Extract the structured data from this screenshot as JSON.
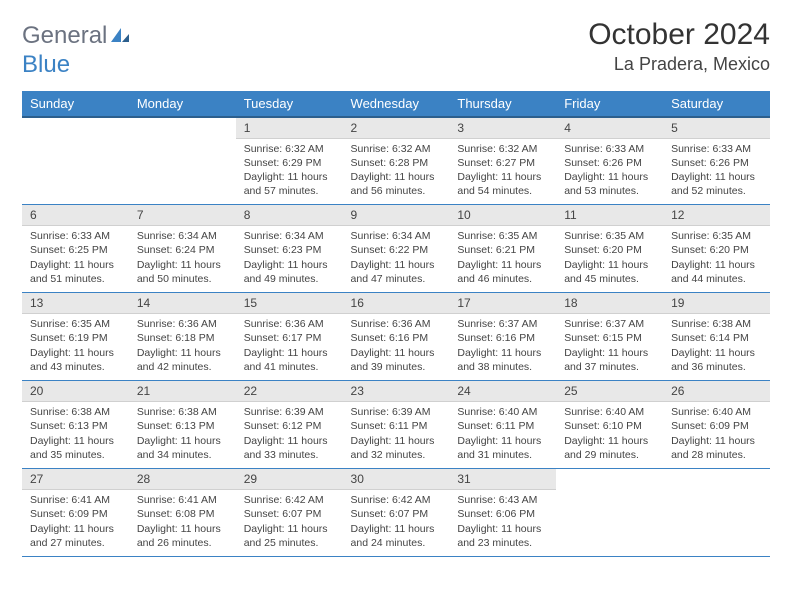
{
  "logo": {
    "general": "General",
    "blue": "Blue"
  },
  "header": {
    "month_title": "October 2024",
    "location": "La Pradera, Mexico"
  },
  "styling": {
    "header_bg": "#3b82c4",
    "header_text": "#ffffff",
    "daynum_bg": "#e8e8e8",
    "border_color": "#3b82c4",
    "page_bg": "#ffffff",
    "text_color": "#444444",
    "title_fontsize": 30,
    "location_fontsize": 18,
    "dayheader_fontsize": 13,
    "daynum_fontsize": 12,
    "detail_fontsize": 10.5
  },
  "day_headers": [
    "Sunday",
    "Monday",
    "Tuesday",
    "Wednesday",
    "Thursday",
    "Friday",
    "Saturday"
  ],
  "weeks": [
    [
      null,
      null,
      {
        "n": "1",
        "sr": "6:32 AM",
        "ss": "6:29 PM",
        "dl": "11 hours and 57 minutes."
      },
      {
        "n": "2",
        "sr": "6:32 AM",
        "ss": "6:28 PM",
        "dl": "11 hours and 56 minutes."
      },
      {
        "n": "3",
        "sr": "6:32 AM",
        "ss": "6:27 PM",
        "dl": "11 hours and 54 minutes."
      },
      {
        "n": "4",
        "sr": "6:33 AM",
        "ss": "6:26 PM",
        "dl": "11 hours and 53 minutes."
      },
      {
        "n": "5",
        "sr": "6:33 AM",
        "ss": "6:26 PM",
        "dl": "11 hours and 52 minutes."
      }
    ],
    [
      {
        "n": "6",
        "sr": "6:33 AM",
        "ss": "6:25 PM",
        "dl": "11 hours and 51 minutes."
      },
      {
        "n": "7",
        "sr": "6:34 AM",
        "ss": "6:24 PM",
        "dl": "11 hours and 50 minutes."
      },
      {
        "n": "8",
        "sr": "6:34 AM",
        "ss": "6:23 PM",
        "dl": "11 hours and 49 minutes."
      },
      {
        "n": "9",
        "sr": "6:34 AM",
        "ss": "6:22 PM",
        "dl": "11 hours and 47 minutes."
      },
      {
        "n": "10",
        "sr": "6:35 AM",
        "ss": "6:21 PM",
        "dl": "11 hours and 46 minutes."
      },
      {
        "n": "11",
        "sr": "6:35 AM",
        "ss": "6:20 PM",
        "dl": "11 hours and 45 minutes."
      },
      {
        "n": "12",
        "sr": "6:35 AM",
        "ss": "6:20 PM",
        "dl": "11 hours and 44 minutes."
      }
    ],
    [
      {
        "n": "13",
        "sr": "6:35 AM",
        "ss": "6:19 PM",
        "dl": "11 hours and 43 minutes."
      },
      {
        "n": "14",
        "sr": "6:36 AM",
        "ss": "6:18 PM",
        "dl": "11 hours and 42 minutes."
      },
      {
        "n": "15",
        "sr": "6:36 AM",
        "ss": "6:17 PM",
        "dl": "11 hours and 41 minutes."
      },
      {
        "n": "16",
        "sr": "6:36 AM",
        "ss": "6:16 PM",
        "dl": "11 hours and 39 minutes."
      },
      {
        "n": "17",
        "sr": "6:37 AM",
        "ss": "6:16 PM",
        "dl": "11 hours and 38 minutes."
      },
      {
        "n": "18",
        "sr": "6:37 AM",
        "ss": "6:15 PM",
        "dl": "11 hours and 37 minutes."
      },
      {
        "n": "19",
        "sr": "6:38 AM",
        "ss": "6:14 PM",
        "dl": "11 hours and 36 minutes."
      }
    ],
    [
      {
        "n": "20",
        "sr": "6:38 AM",
        "ss": "6:13 PM",
        "dl": "11 hours and 35 minutes."
      },
      {
        "n": "21",
        "sr": "6:38 AM",
        "ss": "6:13 PM",
        "dl": "11 hours and 34 minutes."
      },
      {
        "n": "22",
        "sr": "6:39 AM",
        "ss": "6:12 PM",
        "dl": "11 hours and 33 minutes."
      },
      {
        "n": "23",
        "sr": "6:39 AM",
        "ss": "6:11 PM",
        "dl": "11 hours and 32 minutes."
      },
      {
        "n": "24",
        "sr": "6:40 AM",
        "ss": "6:11 PM",
        "dl": "11 hours and 31 minutes."
      },
      {
        "n": "25",
        "sr": "6:40 AM",
        "ss": "6:10 PM",
        "dl": "11 hours and 29 minutes."
      },
      {
        "n": "26",
        "sr": "6:40 AM",
        "ss": "6:09 PM",
        "dl": "11 hours and 28 minutes."
      }
    ],
    [
      {
        "n": "27",
        "sr": "6:41 AM",
        "ss": "6:09 PM",
        "dl": "11 hours and 27 minutes."
      },
      {
        "n": "28",
        "sr": "6:41 AM",
        "ss": "6:08 PM",
        "dl": "11 hours and 26 minutes."
      },
      {
        "n": "29",
        "sr": "6:42 AM",
        "ss": "6:07 PM",
        "dl": "11 hours and 25 minutes."
      },
      {
        "n": "30",
        "sr": "6:42 AM",
        "ss": "6:07 PM",
        "dl": "11 hours and 24 minutes."
      },
      {
        "n": "31",
        "sr": "6:43 AM",
        "ss": "6:06 PM",
        "dl": "11 hours and 23 minutes."
      },
      null,
      null
    ]
  ],
  "labels": {
    "sunrise": "Sunrise:",
    "sunset": "Sunset:",
    "daylight": "Daylight:"
  }
}
